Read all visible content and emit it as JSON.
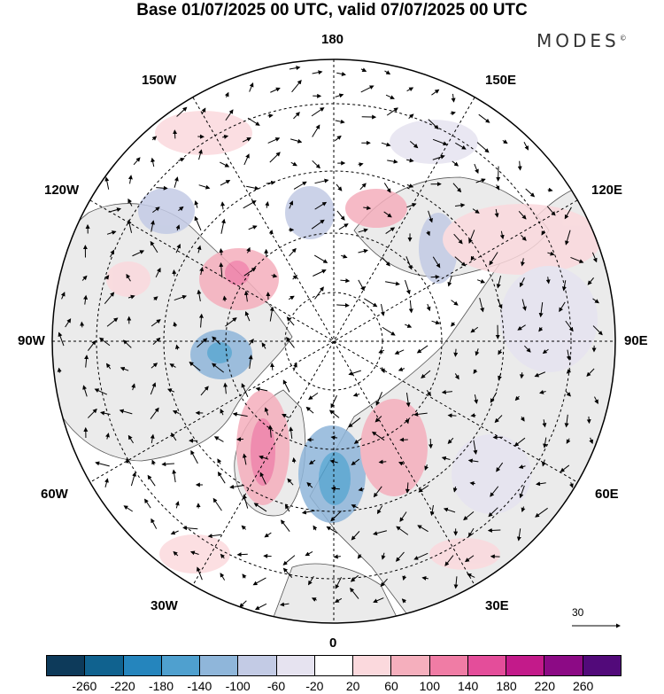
{
  "title": "Base 01/07/2025 00 UTC, valid 07/07/2025 00 UTC",
  "logo": "MODES",
  "logo_mark": "©",
  "meridian_labels": {
    "m180": "180",
    "m150w": "150W",
    "m150e": "150E",
    "m120w": "120W",
    "m120e": "120E",
    "m90w": "90W",
    "m90e": "90E",
    "m60w": "60W",
    "m60e": "60E",
    "m30w": "30W",
    "m30e": "30E",
    "m0": "0"
  },
  "vector_reference": "30",
  "colorbar": {
    "colors": [
      "#0d3a5a",
      "#10628f",
      "#2585bd",
      "#4fa0cf",
      "#8fb6da",
      "#c3cbe5",
      "#e6e3f0",
      "#ffffff",
      "#fbd9dd",
      "#f5afbd",
      "#f07ca5",
      "#e44d9a",
      "#c31a8a",
      "#8c0a85",
      "#520a7a"
    ],
    "ticks": [
      "-260",
      "-220",
      "-180",
      "-140",
      "-100",
      "-60",
      "-20",
      "20",
      "60",
      "100",
      "140",
      "180",
      "220",
      "260"
    ]
  }
}
